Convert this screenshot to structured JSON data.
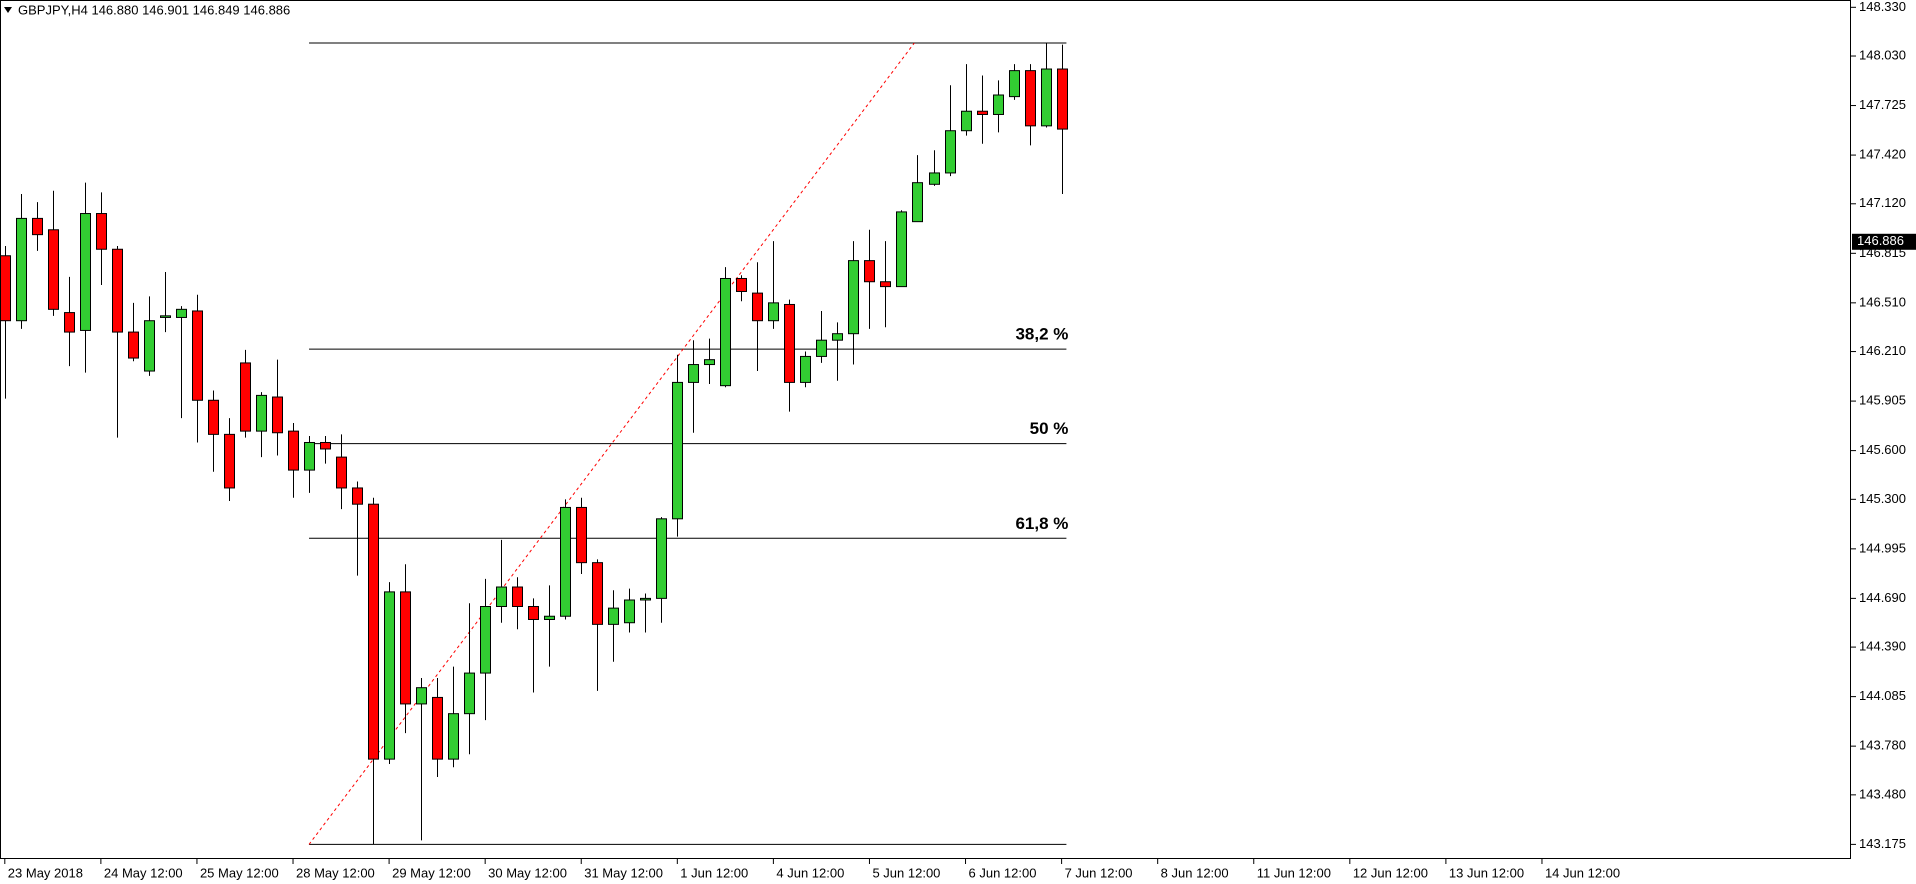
{
  "chart_data": {
    "type": "candlestick",
    "title": "GBPJPY,H4  146.880 146.901 146.849 146.886",
    "up_color": "#32cd32",
    "down_color": "#ff0000",
    "open": [
      146.8,
      146.4,
      147.03,
      146.96,
      146.45,
      146.34,
      147.06,
      146.84,
      146.33,
      146.09,
      146.42,
      146.42,
      146.46,
      145.91,
      145.7,
      146.14,
      145.72,
      145.93,
      145.72,
      145.48,
      145.65,
      145.56,
      145.37,
      145.27,
      143.7,
      144.73,
      144.04,
      144.08,
      143.7,
      143.98,
      144.23,
      144.64,
      144.76,
      144.64,
      144.56,
      144.58,
      145.25,
      144.91,
      144.53,
      144.54,
      144.68,
      144.69,
      145.18,
      146.02,
      146.13,
      146.0,
      146.66,
      146.57,
      146.4,
      146.5,
      146.02,
      146.18,
      146.28,
      146.32,
      146.77,
      146.64,
      146.61,
      147.01,
      147.24,
      147.31,
      147.57,
      147.69,
      147.67,
      147.78,
      147.94,
      147.6,
      147.95
    ],
    "high": [
      146.86,
      147.18,
      147.13,
      147.2,
      146.67,
      147.25,
      147.19,
      146.86,
      146.51,
      146.55,
      146.7,
      146.49,
      146.56,
      145.97,
      145.8,
      146.22,
      145.96,
      146.16,
      145.77,
      145.69,
      145.69,
      145.7,
      145.41,
      145.31,
      144.79,
      144.9,
      144.2,
      144.2,
      144.27,
      144.66,
      144.81,
      145.05,
      144.82,
      144.69,
      144.77,
      145.3,
      145.31,
      144.93,
      144.74,
      144.75,
      144.72,
      145.19,
      146.19,
      146.28,
      146.29,
      146.73,
      146.68,
      146.76,
      146.89,
      146.53,
      146.21,
      146.46,
      146.39,
      146.89,
      146.96,
      146.89,
      147.08,
      147.42,
      147.45,
      147.85,
      147.98,
      147.91,
      147.88,
      147.98,
      147.98,
      148.11,
      148.1
    ],
    "low": [
      145.92,
      146.35,
      146.83,
      146.43,
      146.12,
      146.08,
      146.62,
      145.68,
      146.15,
      146.06,
      146.33,
      145.8,
      145.65,
      145.47,
      145.29,
      145.68,
      145.56,
      145.57,
      145.31,
      145.34,
      145.52,
      145.24,
      144.83,
      143.175,
      143.67,
      143.86,
      143.2,
      143.59,
      143.65,
      143.73,
      143.94,
      144.54,
      144.5,
      144.11,
      144.27,
      144.56,
      144.84,
      144.12,
      144.3,
      144.48,
      144.48,
      144.54,
      145.07,
      145.71,
      146.01,
      145.99,
      146.52,
      146.09,
      146.35,
      145.84,
      145.99,
      146.14,
      146.03,
      146.13,
      146.35,
      146.36,
      146.61,
      147.01,
      147.23,
      147.29,
      147.54,
      147.49,
      147.56,
      147.76,
      147.48,
      147.59,
      147.18
    ],
    "close": [
      146.4,
      147.03,
      146.93,
      146.47,
      146.33,
      147.06,
      146.84,
      146.33,
      146.17,
      146.4,
      146.43,
      146.47,
      145.91,
      145.7,
      145.37,
      145.72,
      145.94,
      145.71,
      145.48,
      145.65,
      145.61,
      145.37,
      145.27,
      143.7,
      144.73,
      144.04,
      144.14,
      143.7,
      143.98,
      144.23,
      144.64,
      144.76,
      144.64,
      144.56,
      144.58,
      145.25,
      144.91,
      144.53,
      144.63,
      144.68,
      144.69,
      145.18,
      146.02,
      146.13,
      146.16,
      146.66,
      146.58,
      146.4,
      146.51,
      146.02,
      146.18,
      146.28,
      146.32,
      146.77,
      146.64,
      146.61,
      147.07,
      147.25,
      147.31,
      147.57,
      147.69,
      147.67,
      147.79,
      147.94,
      147.6,
      147.95,
      147.58
    ],
    "xlim": [
      -0.3,
      115.3
    ],
    "xticks": [
      {
        "value": 0,
        "label": "23 May 2018"
      },
      {
        "value": 6,
        "label": "24 May 12:00"
      },
      {
        "value": 12,
        "label": "25 May 12:00"
      },
      {
        "value": 18,
        "label": "28 May 12:00"
      },
      {
        "value": 24,
        "label": "29 May 12:00"
      },
      {
        "value": 30,
        "label": "30 May 12:00"
      },
      {
        "value": 36,
        "label": "31 May 12:00"
      },
      {
        "value": 42,
        "label": "1 Jun 12:00"
      },
      {
        "value": 48,
        "label": "4 Jun 12:00"
      },
      {
        "value": 54,
        "label": "5 Jun 12:00"
      },
      {
        "value": 60,
        "label": "6 Jun 12:00"
      },
      {
        "value": 66,
        "label": "7 Jun 12:00"
      },
      {
        "value": 72,
        "label": "8 Jun 12:00"
      },
      {
        "value": 78,
        "label": "11 Jun 12:00"
      },
      {
        "value": 84,
        "label": "12 Jun 12:00"
      },
      {
        "value": 90,
        "label": "13 Jun 12:00"
      },
      {
        "value": 96,
        "label": "14 Jun 12:00"
      }
    ],
    "ylim": [
      143.085,
      148.375
    ],
    "yticks": [
      {
        "value": 148.33,
        "label": "148.330"
      },
      {
        "value": 148.03,
        "label": "148.030"
      },
      147.725,
      {
        "value": 147.42,
        "label": "147.420"
      },
      {
        "value": 147.12,
        "label": "147.120"
      },
      146.815,
      {
        "value": 146.51,
        "label": "146.510"
      },
      {
        "value": 146.21,
        "label": "146.210"
      },
      145.905,
      {
        "value": 145.6,
        "label": "145.600"
      },
      {
        "value": 145.3,
        "label": "145.300"
      },
      144.995,
      {
        "value": 144.69,
        "label": "144.690"
      },
      {
        "value": 144.39,
        "label": "144.390"
      },
      144.085,
      {
        "value": 143.78,
        "label": "143.780"
      },
      {
        "value": 143.48,
        "label": "143.480"
      },
      143.175
    ],
    "current_price": 146.886,
    "fibonacci": {
      "x": [
        19,
        66.3
      ],
      "high": 148.11,
      "low": 143.175,
      "levels": [
        {
          "value": 146.225,
          "label": "38,2 %"
        },
        {
          "value": 145.643,
          "label": "50 %"
        },
        {
          "value": 145.06,
          "label": "61,8 %"
        }
      ]
    },
    "trendline": {
      "x": [
        19,
        56.8
      ],
      "y": [
        143.175,
        148.11
      ],
      "color": "#ff0000"
    }
  }
}
